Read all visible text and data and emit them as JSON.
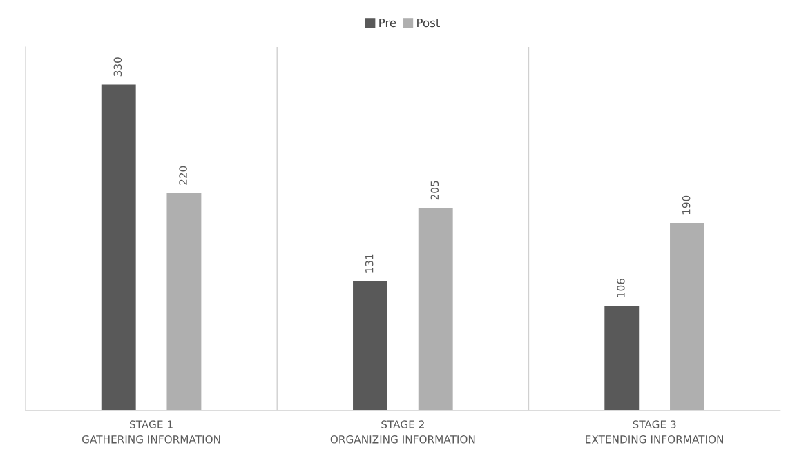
{
  "chart_data": {
    "type": "bar",
    "categories": [
      "STAGE 1\nGATHERING INFORMATION",
      "STAGE 2\nORGANIZING INFORMATION",
      "STAGE 3\nEXTENDING INFORMATION"
    ],
    "series": [
      {
        "name": "Pre",
        "color": "#595959",
        "values": [
          330,
          131,
          106
        ]
      },
      {
        "name": "Post",
        "color": "#afafaf",
        "values": [
          220,
          205,
          190
        ]
      }
    ],
    "data_labels": true,
    "legend": "top",
    "grid": "x"
  }
}
